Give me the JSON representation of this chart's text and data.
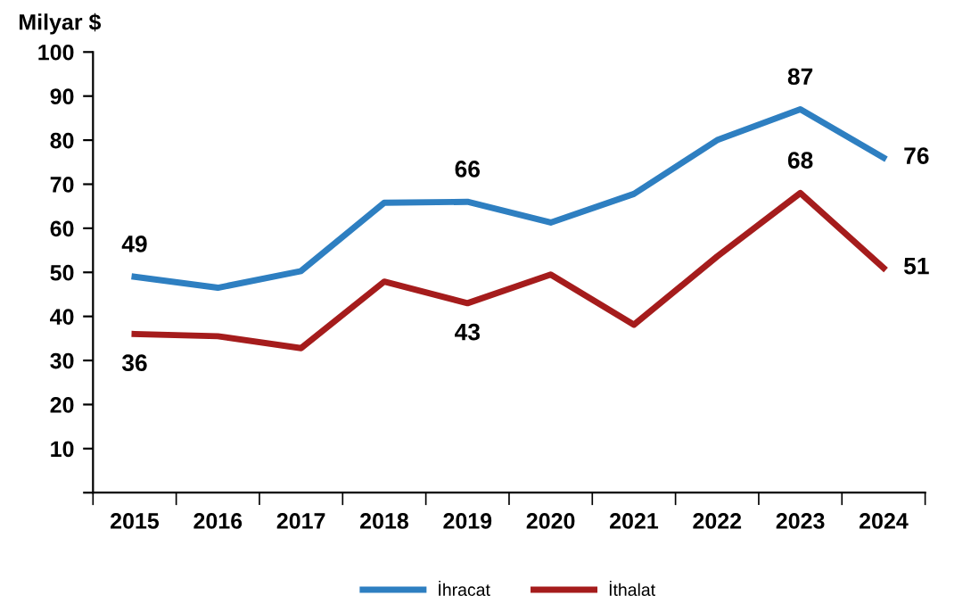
{
  "chart_data": {
    "type": "line",
    "ylabel": "Milyar $",
    "categories": [
      "2015",
      "2016",
      "2017",
      "2018",
      "2019",
      "2020",
      "2021",
      "2022",
      "2023",
      "2024"
    ],
    "series": [
      {
        "name": "İhracat",
        "color": "#2e7fc1",
        "values": [
          49,
          46.5,
          50.3,
          65.8,
          66,
          61.3,
          67.8,
          80,
          87,
          76
        ],
        "value_labels": [
          "49",
          null,
          null,
          null,
          "66",
          null,
          null,
          null,
          "87",
          "76"
        ]
      },
      {
        "name": "İthalat",
        "color": "#a51c1c",
        "values": [
          36,
          35.5,
          32.8,
          47.9,
          43,
          49.5,
          38.1,
          53.6,
          68,
          51
        ],
        "value_labels": [
          "36",
          null,
          null,
          null,
          "43",
          null,
          null,
          null,
          "68",
          "51"
        ]
      }
    ],
    "ylim": [
      0,
      100
    ],
    "yticks": [
      {
        "value": 0,
        "label": null
      },
      10,
      20,
      30,
      40,
      50,
      60,
      70,
      80,
      90,
      100
    ],
    "grid": false,
    "legend": "bottom",
    "marker": "none",
    "line_style": "solid"
  }
}
